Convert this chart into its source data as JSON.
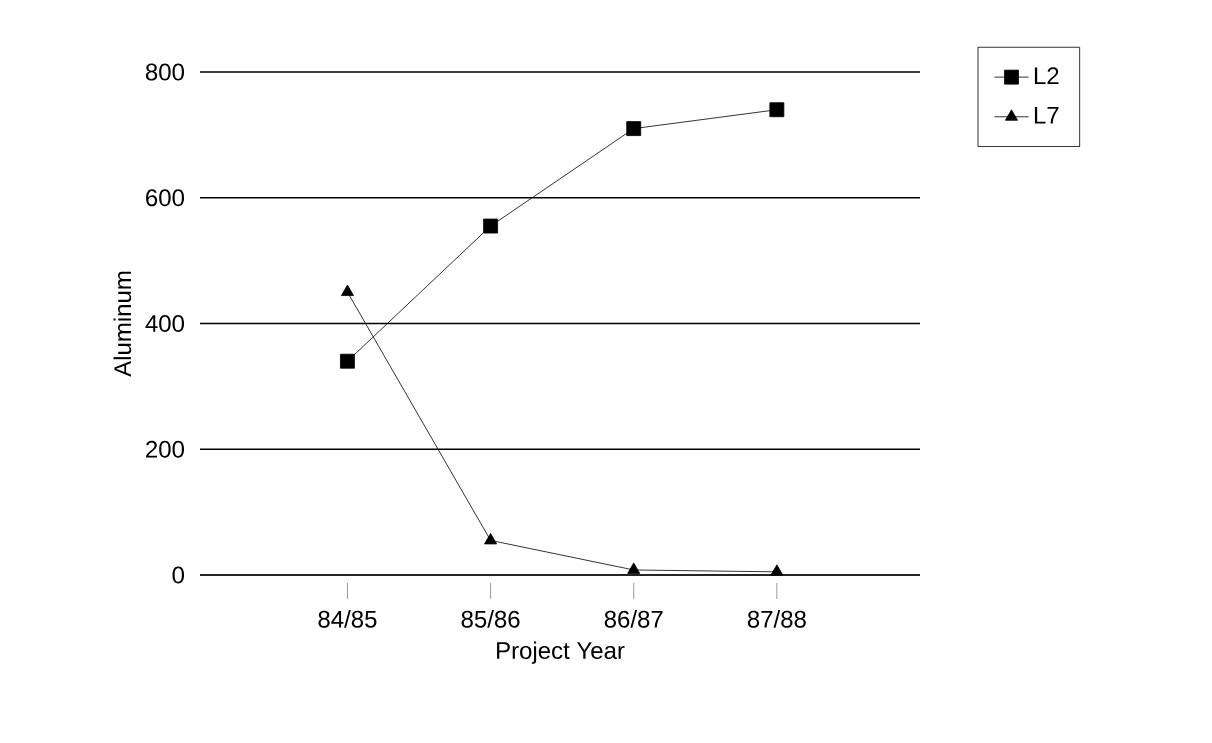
{
  "chart_data": {
    "type": "line",
    "xlabel": "Project Year",
    "ylabel": "Aluminum",
    "categories": [
      "84/85",
      "85/86",
      "86/87",
      "87/88"
    ],
    "series": [
      {
        "name": "L2",
        "color": "#000000",
        "marker": "square",
        "values": [
          340,
          555,
          710,
          740
        ]
      },
      {
        "name": "L7",
        "color": "#000000",
        "marker": "triangle",
        "values": [
          450,
          55,
          8,
          5
        ]
      }
    ],
    "ylim": [
      0,
      800
    ],
    "yticks": [
      0,
      200,
      400,
      600,
      800
    ],
    "grid": "y",
    "legend": "top right",
    "line_style": "solid"
  }
}
